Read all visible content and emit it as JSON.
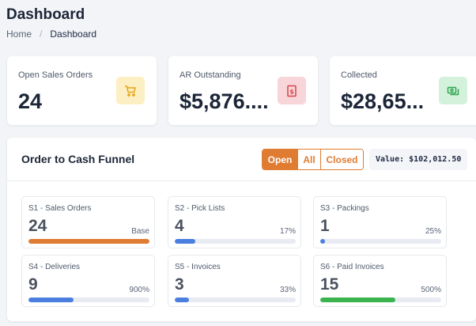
{
  "header": {
    "title": "Dashboard"
  },
  "breadcrumb": {
    "home": "Home",
    "current": "Dashboard"
  },
  "kpis": [
    {
      "label": "Open Sales Orders",
      "value": "24",
      "icon": "cart-icon",
      "icon_color": "#e6a313"
    },
    {
      "label": "AR Outstanding",
      "value": "$5,876....",
      "icon": "receipt-dollar-icon",
      "icon_color": "#d64550"
    },
    {
      "label": "Collected",
      "value": "$28,65...",
      "icon": "cash-icon",
      "icon_color": "#2fa84f"
    }
  ],
  "funnel": {
    "title": "Order to Cash Funnel",
    "filter": {
      "open": "Open",
      "all": "All",
      "closed": "Closed",
      "selected": "Open"
    },
    "total": "Value: $102,012.50",
    "stages": [
      {
        "label": "S1 - Sales Orders",
        "value": "24",
        "pct": "Base",
        "fill_fraction": 1.0,
        "color": "#e07b32"
      },
      {
        "label": "S2 - Pick Lists",
        "value": "4",
        "pct": "17%",
        "fill_fraction": 0.17,
        "color": "#4a7fe0"
      },
      {
        "label": "S3 - Packings",
        "value": "1",
        "pct": "25%",
        "fill_fraction": 0.04,
        "color": "#4a7fe0"
      },
      {
        "label": "S4 - Deliveries",
        "value": "9",
        "pct": "900%",
        "fill_fraction": 0.37,
        "color": "#4a7fe0"
      },
      {
        "label": "S5 - Invoices",
        "value": "3",
        "pct": "33%",
        "fill_fraction": 0.12,
        "color": "#4a7fe0"
      },
      {
        "label": "S6 - Paid Invoices",
        "value": "15",
        "pct": "500%",
        "fill_fraction": 0.62,
        "color": "#3bb34e"
      }
    ]
  },
  "colors": {
    "accent": "#e07b32",
    "progress_blue": "#4a7fe0",
    "progress_green": "#3bb34e"
  }
}
